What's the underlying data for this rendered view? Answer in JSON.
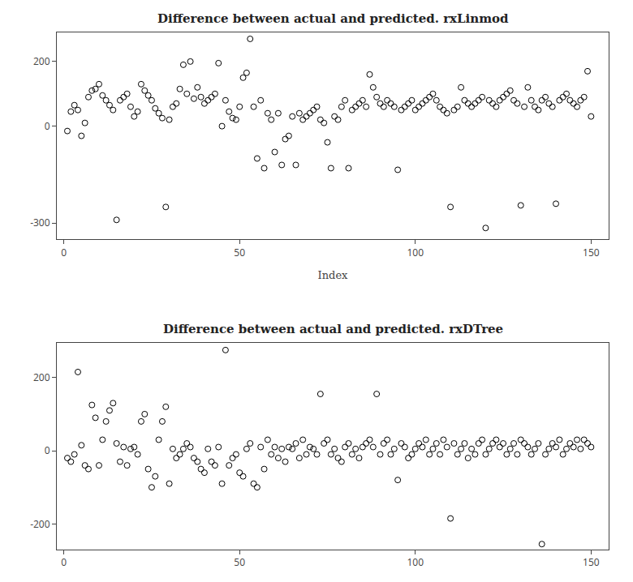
{
  "chart_data": [
    {
      "type": "scatter",
      "title": "Difference between actual and predicted. rxLinmod",
      "xlabel": "Index",
      "x": [
        1,
        2,
        3,
        4,
        5,
        6,
        7,
        8,
        9,
        10,
        11,
        12,
        13,
        14,
        15,
        16,
        17,
        18,
        19,
        20,
        21,
        22,
        23,
        24,
        25,
        26,
        27,
        28,
        29,
        30,
        31,
        32,
        33,
        34,
        35,
        36,
        37,
        38,
        39,
        40,
        41,
        42,
        43,
        44,
        45,
        46,
        47,
        48,
        49,
        50,
        51,
        52,
        53,
        54,
        55,
        56,
        57,
        58,
        59,
        60,
        61,
        62,
        63,
        64,
        65,
        66,
        67,
        68,
        69,
        70,
        71,
        72,
        73,
        74,
        75,
        76,
        77,
        78,
        79,
        80,
        81,
        82,
        83,
        84,
        85,
        86,
        87,
        88,
        89,
        90,
        91,
        92,
        93,
        94,
        95,
        96,
        97,
        98,
        99,
        100,
        101,
        102,
        103,
        104,
        105,
        106,
        107,
        108,
        109,
        110,
        111,
        112,
        113,
        114,
        115,
        116,
        117,
        118,
        119,
        120,
        121,
        122,
        123,
        124,
        125,
        126,
        127,
        128,
        129,
        130,
        131,
        132,
        133,
        134,
        135,
        136,
        137,
        138,
        139,
        140,
        141,
        142,
        143,
        144,
        145,
        146,
        147,
        148,
        149,
        150
      ],
      "values": [
        -15,
        45,
        65,
        50,
        -30,
        10,
        90,
        110,
        115,
        130,
        95,
        80,
        65,
        50,
        -290,
        80,
        90,
        100,
        60,
        30,
        45,
        130,
        110,
        95,
        80,
        55,
        40,
        25,
        -250,
        20,
        60,
        70,
        115,
        190,
        100,
        200,
        85,
        120,
        90,
        70,
        80,
        90,
        100,
        195,
        0,
        80,
        45,
        25,
        20,
        60,
        150,
        165,
        270,
        60,
        -100,
        80,
        -130,
        40,
        20,
        -80,
        40,
        -120,
        -40,
        -30,
        30,
        -120,
        40,
        20,
        30,
        40,
        50,
        60,
        20,
        10,
        -50,
        -130,
        30,
        20,
        60,
        80,
        -130,
        50,
        60,
        70,
        80,
        60,
        160,
        120,
        90,
        70,
        60,
        80,
        70,
        60,
        -135,
        50,
        60,
        70,
        80,
        50,
        60,
        70,
        80,
        90,
        100,
        80,
        60,
        50,
        40,
        -250,
        50,
        60,
        120,
        80,
        70,
        60,
        70,
        80,
        90,
        -315,
        80,
        70,
        60,
        80,
        90,
        100,
        110,
        80,
        70,
        -245,
        60,
        120,
        80,
        60,
        50,
        80,
        90,
        70,
        60,
        -240,
        80,
        90,
        100,
        80,
        70,
        60,
        80,
        90,
        170,
        30
      ],
      "xlim": [
        -2,
        155
      ],
      "xticks": [
        0,
        50,
        100,
        150
      ],
      "ylim": [
        -350,
        290
      ],
      "yticks": [
        -300,
        0,
        200
      ],
      "color": "black",
      "marker": "circle-open",
      "grid": false
    },
    {
      "type": "scatter",
      "title": "Difference between actual and predicted. rxDTree",
      "x": [
        1,
        2,
        3,
        4,
        5,
        6,
        7,
        8,
        9,
        10,
        11,
        12,
        13,
        14,
        15,
        16,
        17,
        18,
        19,
        20,
        21,
        22,
        23,
        24,
        25,
        26,
        27,
        28,
        29,
        30,
        31,
        32,
        33,
        34,
        35,
        36,
        37,
        38,
        39,
        40,
        41,
        42,
        43,
        44,
        45,
        46,
        47,
        48,
        49,
        50,
        51,
        52,
        53,
        54,
        55,
        56,
        57,
        58,
        59,
        60,
        61,
        62,
        63,
        64,
        65,
        66,
        67,
        68,
        69,
        70,
        71,
        72,
        73,
        74,
        75,
        76,
        77,
        78,
        79,
        80,
        81,
        82,
        83,
        84,
        85,
        86,
        87,
        88,
        89,
        90,
        91,
        92,
        93,
        94,
        95,
        96,
        97,
        98,
        99,
        100,
        101,
        102,
        103,
        104,
        105,
        106,
        107,
        108,
        109,
        110,
        111,
        112,
        113,
        114,
        115,
        116,
        117,
        118,
        119,
        120,
        121,
        122,
        123,
        124,
        125,
        126,
        127,
        128,
        129,
        130,
        131,
        132,
        133,
        134,
        135,
        136,
        137,
        138,
        139,
        140,
        141,
        142,
        143,
        144,
        145,
        146,
        147,
        148,
        149,
        150
      ],
      "values": [
        -20,
        -30,
        -10,
        215,
        15,
        -40,
        -50,
        125,
        90,
        -40,
        30,
        80,
        110,
        130,
        20,
        -30,
        10,
        -40,
        5,
        10,
        -10,
        80,
        100,
        -50,
        -100,
        -70,
        30,
        80,
        120,
        -90,
        5,
        -20,
        -10,
        5,
        20,
        10,
        -20,
        -30,
        -50,
        -60,
        5,
        -30,
        -40,
        10,
        -90,
        275,
        -40,
        -20,
        -10,
        -60,
        -70,
        5,
        20,
        -90,
        -100,
        10,
        -50,
        30,
        -10,
        10,
        -20,
        5,
        -30,
        10,
        5,
        20,
        -20,
        30,
        -10,
        10,
        5,
        -10,
        155,
        20,
        30,
        -10,
        5,
        -20,
        -30,
        10,
        20,
        -10,
        5,
        -20,
        10,
        20,
        30,
        10,
        155,
        -10,
        20,
        30,
        -10,
        5,
        -80,
        20,
        10,
        -20,
        -10,
        5,
        20,
        10,
        30,
        -10,
        5,
        20,
        -10,
        30,
        10,
        -185,
        20,
        -10,
        5,
        20,
        -20,
        5,
        -10,
        20,
        30,
        -10,
        5,
        20,
        30,
        10,
        20,
        -10,
        5,
        20,
        -10,
        30,
        20,
        10,
        -10,
        5,
        20,
        -255,
        -10,
        5,
        20,
        10,
        30,
        -10,
        5,
        20,
        10,
        30,
        5,
        30,
        20,
        10
      ],
      "xlim": [
        -2,
        155
      ],
      "xticks": [
        0,
        50,
        100,
        150
      ],
      "ylim": [
        -270,
        295
      ],
      "yticks": [
        -200,
        0,
        200
      ],
      "color": "black",
      "marker": "circle-open",
      "grid": false
    }
  ]
}
